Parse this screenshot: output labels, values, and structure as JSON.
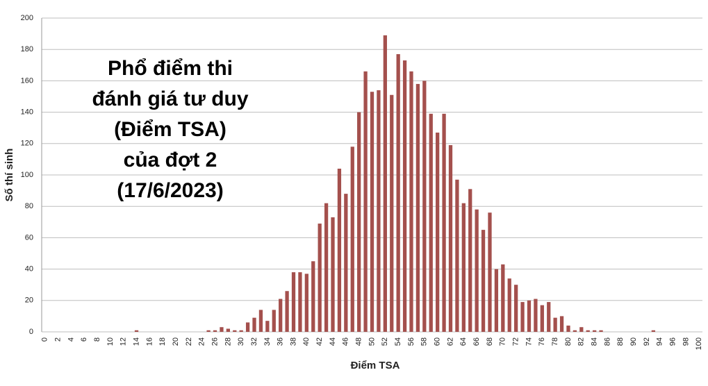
{
  "chart_data": {
    "type": "bar",
    "title_lines": [
      "Phổ điểm thi",
      "đánh giá tư duy",
      "(Điểm TSA)",
      "của đợt 2",
      "(17/6/2023)"
    ],
    "x_label": "Điểm TSA",
    "y_label": "Số thí sinh",
    "categories": [
      "0",
      null,
      "2",
      null,
      "4",
      null,
      "6",
      null,
      "8",
      null,
      "10",
      null,
      "12",
      null,
      "14",
      null,
      "16",
      null,
      "18",
      null,
      "20",
      null,
      "22",
      null,
      "24",
      null,
      "26",
      null,
      "28",
      null,
      "30",
      null,
      "32",
      null,
      "34",
      null,
      "36",
      null,
      "38",
      null,
      "40",
      null,
      "42",
      null,
      "44",
      null,
      "46",
      null,
      "48",
      null,
      "50",
      null,
      "52",
      null,
      "54",
      null,
      "56",
      null,
      "58",
      null,
      "60",
      null,
      "62",
      null,
      "64",
      null,
      "66",
      null,
      "68",
      null,
      "70",
      null,
      "72",
      null,
      "74",
      null,
      "76",
      null,
      "78",
      null,
      "80",
      null,
      "82",
      null,
      "84",
      null,
      "86",
      null,
      "88",
      null,
      "90",
      null,
      "92",
      null,
      "94",
      null,
      "96",
      null,
      "98",
      null,
      "100"
    ],
    "values": [
      0,
      0,
      0,
      0,
      0,
      0,
      0,
      0,
      0,
      0,
      0,
      0,
      0,
      0,
      1,
      0,
      0,
      0,
      0,
      0,
      0,
      0,
      0,
      0,
      0,
      1,
      1,
      3,
      2,
      1,
      1,
      6,
      9,
      14,
      7,
      14,
      21,
      26,
      38,
      38,
      37,
      45,
      69,
      82,
      73,
      104,
      88,
      118,
      140,
      166,
      153,
      154,
      189,
      151,
      177,
      173,
      166,
      158,
      160,
      139,
      127,
      139,
      119,
      97,
      82,
      91,
      78,
      65,
      76,
      40,
      43,
      34,
      30,
      19,
      20,
      21,
      17,
      19,
      9,
      10,
      4,
      1,
      3,
      1,
      1,
      1,
      0,
      0,
      0,
      0,
      0,
      0,
      0,
      1,
      0,
      0,
      0,
      0,
      0,
      0,
      0
    ],
    "color": "#a4504d",
    "ylim": [
      0,
      200
    ],
    "yticks": [
      0,
      20,
      40,
      60,
      80,
      100,
      120,
      140,
      160,
      180,
      200
    ],
    "grid": true
  }
}
